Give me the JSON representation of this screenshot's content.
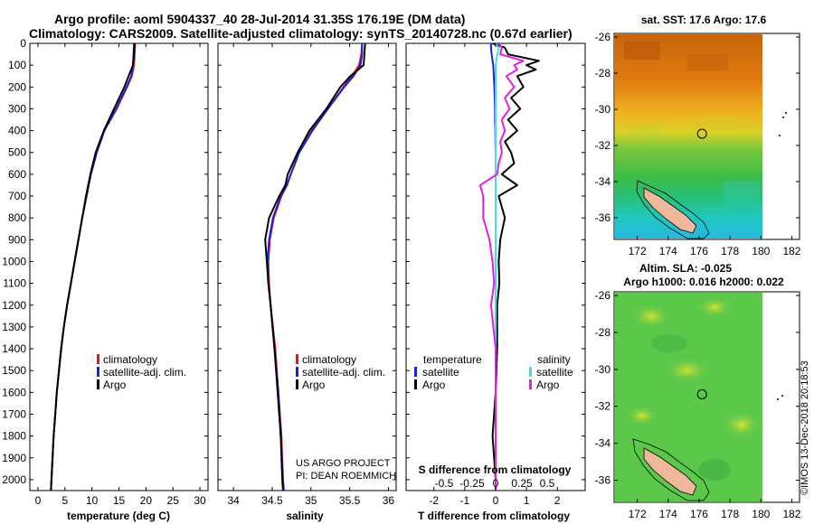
{
  "header": {
    "line1": "Argo profile: aoml 5904337_40 28-Jul-2014 31.35S 176.19E (DM data)",
    "line2": "Climatology: CARS2009. Satellite-adjusted climatology: synTS_20140728.nc (0.67d earlier)"
  },
  "credits": {
    "project": "US ARGO PROJECT",
    "pi": "PI: DEAN ROEMMICH"
  },
  "side_stamp": "©IMOS 13-Dec-2018 20:18:53",
  "colors": {
    "climatology": "#e8141c",
    "satellite": "#1a22d8",
    "argo": "#000000",
    "sat_salinity": "#3ee0e6",
    "argo_salinity_diff": "#e020e0"
  },
  "chart_data": [
    {
      "type": "line",
      "panel": "temperature",
      "xlabel": "temperature (deg C)",
      "ylabel": "",
      "xlim": [
        -1.5,
        31.5
      ],
      "ylim": [
        2050,
        0
      ],
      "xticks": [
        "0",
        "5",
        "10",
        "15",
        "20",
        "25",
        "30"
      ],
      "yticks": [
        "0",
        "100",
        "200",
        "300",
        "400",
        "500",
        "600",
        "700",
        "800",
        "900",
        "1000",
        "1100",
        "1200",
        "1300",
        "1400",
        "1500",
        "1600",
        "1700",
        "1800",
        "1900",
        "2000"
      ],
      "legend": [
        "climatology",
        "satellite-adj. clim.",
        "Argo"
      ],
      "depth": [
        0,
        50,
        100,
        150,
        200,
        300,
        400,
        500,
        600,
        700,
        800,
        900,
        1000,
        1100,
        1200,
        1300,
        1400,
        1500,
        1600,
        1700,
        1800,
        1900,
        2000,
        2050
      ],
      "series": [
        {
          "name": "climatology",
          "values": [
            18.0,
            17.9,
            17.8,
            17.4,
            16.5,
            14.6,
            12.3,
            10.9,
            9.8,
            9.0,
            8.2,
            7.5,
            6.8,
            6.1,
            5.4,
            4.8,
            4.3,
            3.9,
            3.5,
            3.2,
            2.9,
            2.7,
            2.5,
            2.4
          ]
        },
        {
          "name": "satellite-adj. clim.",
          "values": [
            17.8,
            17.7,
            17.6,
            17.3,
            16.4,
            14.5,
            12.3,
            10.9,
            9.8,
            9.0,
            8.2,
            7.5,
            6.8,
            6.1,
            5.4,
            4.8,
            4.3,
            3.9,
            3.5,
            3.2,
            2.9,
            2.7,
            2.5,
            2.4
          ]
        },
        {
          "name": "Argo",
          "values": [
            17.9,
            17.8,
            17.6,
            16.8,
            16.0,
            14.1,
            12.2,
            10.7,
            9.7,
            8.9,
            8.2,
            7.5,
            6.8,
            6.1,
            5.4,
            4.8,
            4.3,
            3.9,
            3.5,
            3.2,
            2.9,
            2.7,
            2.5,
            2.4
          ]
        }
      ]
    },
    {
      "type": "line",
      "panel": "salinity",
      "xlabel": "salinity",
      "ylabel": "",
      "xlim": [
        33.8,
        36.1
      ],
      "ylim": [
        2050,
        0
      ],
      "xticks": [
        "34",
        "34.5",
        "35",
        "35.5",
        "36"
      ],
      "legend": [
        "climatology",
        "satellite-adj. clim.",
        "Argo"
      ],
      "depth": [
        0,
        50,
        100,
        150,
        200,
        300,
        400,
        500,
        600,
        650,
        700,
        800,
        900,
        1000,
        1100,
        1200,
        1400,
        1600,
        1800,
        2000,
        2050
      ],
      "series": [
        {
          "name": "climatology",
          "values": [
            35.66,
            35.65,
            35.62,
            35.53,
            35.42,
            35.22,
            35.01,
            34.85,
            34.74,
            34.69,
            34.62,
            34.52,
            34.47,
            34.45,
            34.46,
            34.48,
            34.54,
            34.58,
            34.62,
            34.64,
            34.65
          ]
        },
        {
          "name": "satellite-adj. clim.",
          "values": [
            35.66,
            35.66,
            35.64,
            35.55,
            35.43,
            35.22,
            35.02,
            34.85,
            34.74,
            34.69,
            34.61,
            34.51,
            34.46,
            34.44,
            34.45,
            34.48,
            34.53,
            34.58,
            34.61,
            34.64,
            34.65
          ]
        },
        {
          "name": "Argo",
          "values": [
            35.7,
            35.69,
            35.68,
            35.51,
            35.38,
            35.2,
            34.98,
            34.83,
            34.7,
            34.67,
            34.59,
            34.46,
            34.41,
            34.43,
            34.45,
            34.48,
            34.53,
            34.57,
            34.61,
            34.63,
            34.64
          ]
        }
      ]
    },
    {
      "type": "line",
      "panel": "difference",
      "xlabel": "T difference from climatology",
      "secondary_xlabel": "S difference from climatology",
      "xlim": [
        -2.9,
        2.9
      ],
      "ylim": [
        2050,
        0
      ],
      "xticks": [
        "-2",
        "-1",
        "0",
        "1",
        "2"
      ],
      "secondary_xticks": [
        "-0.5",
        "-0.25",
        "0",
        "0.25",
        "0.5"
      ],
      "legend_groups": [
        {
          "title": "temperature",
          "items": [
            "satellite",
            "Argo"
          ]
        },
        {
          "title": "salinity",
          "items": [
            "satellite",
            "Argo"
          ]
        }
      ],
      "depth": [
        0,
        20,
        50,
        80,
        100,
        120,
        150,
        200,
        250,
        300,
        350,
        400,
        450,
        500,
        550,
        600,
        650,
        700,
        800,
        900,
        1000,
        1100,
        1200,
        1400,
        1600,
        1800,
        2000,
        2050
      ],
      "series": [
        {
          "name": "temperature satellite",
          "values": [
            -0.15,
            -0.15,
            -0.13,
            -0.1,
            -0.08,
            -0.07,
            -0.06,
            -0.04,
            -0.03,
            -0.02,
            -0.02,
            -0.01,
            -0.01,
            0,
            0,
            0,
            0,
            0,
            0,
            0,
            0,
            0,
            0,
            0,
            0,
            0,
            0,
            0
          ]
        },
        {
          "name": "temperature Argo",
          "values": [
            -0.1,
            0.3,
            0.4,
            1.4,
            1.0,
            1.3,
            0.7,
            0.9,
            0.5,
            0.8,
            0.4,
            0.7,
            0.3,
            0.5,
            0.6,
            0.2,
            0.7,
            0.1,
            0.3,
            0.15,
            0.1,
            0.12,
            0.05,
            0.05,
            0.0,
            -0.1,
            0,
            0
          ]
        },
        {
          "name": "salinity satellite",
          "values": [
            0,
            0.1,
            0.05,
            0.02,
            0,
            0,
            0,
            0,
            0,
            0,
            0,
            0,
            0,
            0,
            0,
            0,
            0,
            0,
            0,
            0,
            0,
            0,
            0,
            0,
            0,
            0,
            0,
            0
          ]
        },
        {
          "name": "salinity Argo",
          "values": [
            0.1,
            0.2,
            0.15,
            0.9,
            0.6,
            0.7,
            0.35,
            0.6,
            0.3,
            0.45,
            0.2,
            0.3,
            0.15,
            0.2,
            0.1,
            0.05,
            -0.5,
            -0.4,
            -0.4,
            -0.2,
            -0.1,
            -0.05,
            -0.15,
            0,
            0,
            0,
            0,
            0
          ]
        }
      ]
    },
    {
      "type": "heatmap",
      "panel": "map-sst",
      "title": "sat. SST: 17.6 Argo: 17.6",
      "xticks": [
        "172",
        "174",
        "176",
        "178",
        "180",
        "182"
      ],
      "yticks": [
        "-26",
        "-28",
        "-30",
        "-32",
        "-34",
        "-36"
      ],
      "xlim": [
        170.5,
        182.5
      ],
      "ylim": [
        -37.2,
        -25.8
      ],
      "argo_position": {
        "lon": 176.19,
        "lat": -31.35
      }
    },
    {
      "type": "heatmap",
      "panel": "map-sla",
      "title": "Altim. SLA: -0.025",
      "subtitle": "Argo h1000: 0.016 h2000: 0.022",
      "xticks": [
        "172",
        "174",
        "176",
        "178",
        "180",
        "182"
      ],
      "yticks": [
        "-26",
        "-28",
        "-30",
        "-32",
        "-34",
        "-36"
      ],
      "xlim": [
        170.5,
        182.5
      ],
      "ylim": [
        -37.2,
        -25.8
      ],
      "argo_position": {
        "lon": 176.19,
        "lat": -31.35
      }
    }
  ]
}
